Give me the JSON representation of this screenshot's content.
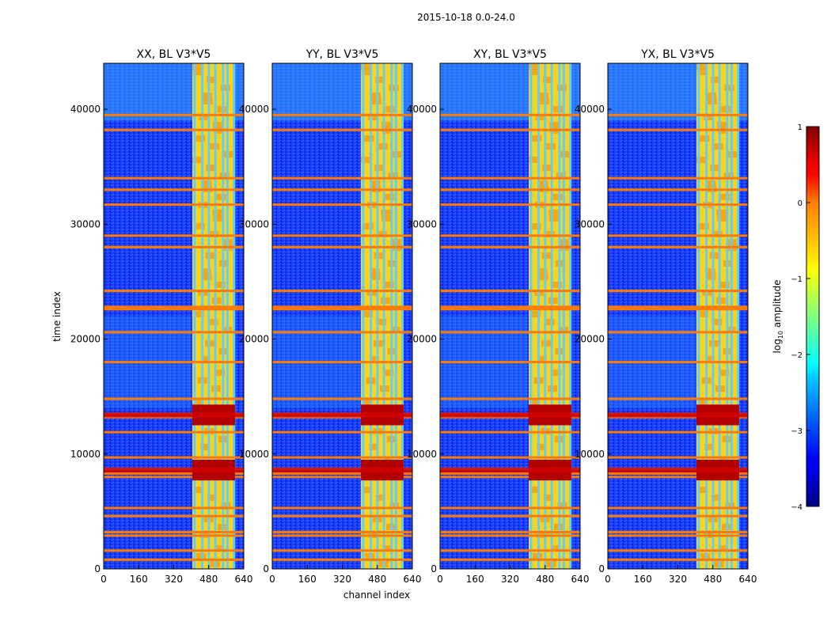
{
  "chart_data": {
    "type": "heatmap",
    "suptitle": "2015-10-18 0.0-24.0",
    "xlabel": "channel index",
    "ylabel": "time index",
    "xlim": [
      0,
      640
    ],
    "ylim": [
      0,
      44000
    ],
    "xticks": [
      0,
      160,
      320,
      480,
      640
    ],
    "yticks": [
      0,
      10000,
      20000,
      30000,
      40000
    ],
    "xtick_labels": [
      "0",
      "160",
      "320",
      "480",
      "640"
    ],
    "ytick_labels": [
      "0",
      "10000",
      "20000",
      "30000",
      "40000"
    ],
    "panels": [
      {
        "title": "XX, BL V3*V5"
      },
      {
        "title": "YY, BL V3*V5"
      },
      {
        "title": "XY, BL V3*V5"
      },
      {
        "title": "YX, BL V3*V5"
      }
    ],
    "colorbar": {
      "label": "log10 amplitude",
      "label_prefix": "log",
      "label_sub": "10",
      "label_suffix": " amplitude",
      "range": [
        -4,
        1
      ],
      "ticks": [
        1,
        0,
        -1,
        -2,
        -3,
        -4
      ],
      "tick_labels": [
        "1",
        "0",
        "−1",
        "−2",
        "−3",
        "−4"
      ],
      "colormap": "jet"
    },
    "band_channels": [
      405,
      600
    ],
    "rfi_time_rows": [
      39500,
      38200,
      34000,
      33000,
      31700,
      29000,
      28000,
      24200,
      22800,
      22600,
      20600,
      18000,
      14800,
      13500,
      13200,
      11900,
      9700,
      8700,
      8300,
      8000,
      5300,
      4600,
      3200,
      2900,
      1600,
      800
    ],
    "strong_time_rows": [
      13400,
      8600
    ]
  }
}
